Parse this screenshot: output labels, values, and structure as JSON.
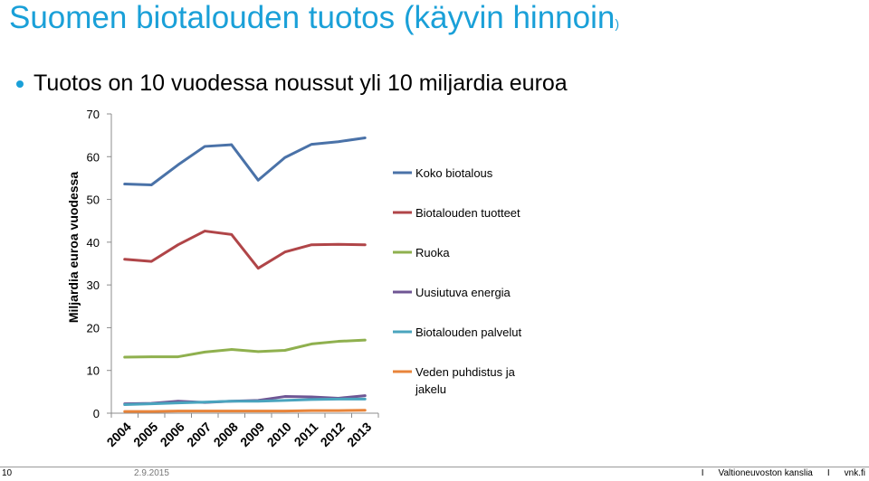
{
  "slide": {
    "title_main": "Suomen biotalouden tuotos (käyvin hinnoin",
    "title_paren": ")",
    "bullet": "Tuotos on 10 vuodessa noussut yli 10 miljardia euroa"
  },
  "footer": {
    "page": "10",
    "date": "2.9.2015",
    "separator": "I",
    "org": "Valtioneuvoston kanslia",
    "site": "vnk.fi"
  },
  "chart_data": {
    "type": "line",
    "title": "",
    "xlabel": "",
    "ylabel": "Miljardia euroa vuodessa",
    "ylim": [
      0,
      70
    ],
    "yticks": [
      0,
      10,
      20,
      30,
      40,
      50,
      60,
      70
    ],
    "grid": false,
    "legend_position": "right",
    "x": [
      "2004",
      "2005",
      "2006",
      "2007",
      "2008",
      "2009",
      "2010",
      "2011",
      "2012",
      "2013"
    ],
    "series": [
      {
        "name": "Koko biotalous",
        "color": "#4a72a8",
        "values": [
          53.6,
          53.4,
          58.1,
          62.4,
          62.8,
          54.5,
          59.8,
          62.9,
          63.5,
          64.4
        ]
      },
      {
        "name": "Biotalouden tuotteet",
        "color": "#b04548",
        "values": [
          36.0,
          35.5,
          39.4,
          42.6,
          41.8,
          33.9,
          37.7,
          39.4,
          39.5,
          39.4
        ]
      },
      {
        "name": "Ruoka",
        "color": "#8fb04e",
        "values": [
          13.1,
          13.2,
          13.2,
          14.3,
          14.9,
          14.4,
          14.7,
          16.2,
          16.8,
          17.1
        ]
      },
      {
        "name": "Uusiutuva energia",
        "color": "#6f5694",
        "values": [
          2.2,
          2.3,
          2.8,
          2.5,
          2.8,
          3.0,
          3.9,
          3.8,
          3.5,
          4.1
        ]
      },
      {
        "name": "Biotalouden palvelut",
        "color": "#4aa4be",
        "values": [
          2.0,
          2.2,
          2.4,
          2.6,
          2.8,
          2.8,
          3.0,
          3.2,
          3.3,
          3.3
        ]
      },
      {
        "name": "Veden puhdistus ja jakelu",
        "color": "#e8843a",
        "values": [
          0.4,
          0.4,
          0.5,
          0.5,
          0.5,
          0.5,
          0.5,
          0.6,
          0.6,
          0.7
        ]
      }
    ]
  }
}
